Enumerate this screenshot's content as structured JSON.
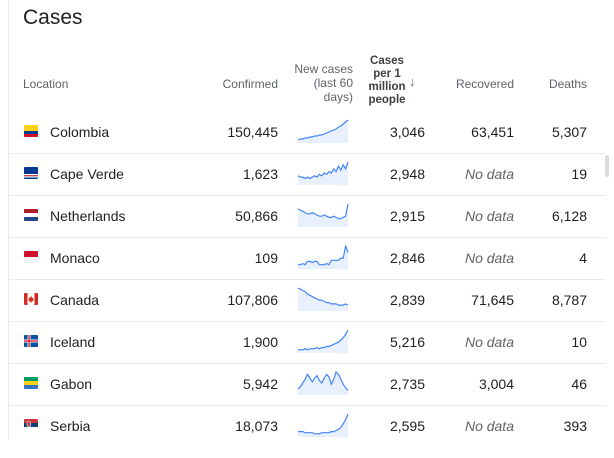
{
  "title": "Cases",
  "columns": {
    "location": "Location",
    "confirmed": "Confirmed",
    "new_cases": [
      "New cases",
      "(last 60",
      "days)"
    ],
    "cases_per_million": [
      "Cases",
      "per 1",
      "million",
      "people"
    ],
    "sort_arrow": "↓",
    "recovered": "Recovered",
    "deaths": "Deaths"
  },
  "accent_color": "#4285f4",
  "rows": [
    {
      "country": "Colombia",
      "flag": "colombia-flag-icon",
      "confirmed": "150,445",
      "cases_per_million": "3,046",
      "recovered": "63,451",
      "recovered_missing": false,
      "deaths": "5,307",
      "trend": [
        2,
        3,
        3,
        4,
        4,
        5,
        5,
        6,
        6,
        7,
        7,
        8,
        9,
        10,
        11,
        12,
        13,
        15,
        16,
        18,
        20,
        22
      ]
    },
    {
      "country": "Cape Verde",
      "flag": "cape-verde-flag-icon",
      "confirmed": "1,623",
      "cases_per_million": "2,948",
      "recovered": "No data",
      "recovered_missing": true,
      "deaths": "19",
      "trend": [
        6,
        5,
        5,
        4,
        5,
        4,
        5,
        6,
        5,
        7,
        6,
        8,
        7,
        9,
        8,
        11,
        9,
        13,
        10,
        14,
        11,
        16
      ]
    },
    {
      "country": "Netherlands",
      "flag": "netherlands-flag-icon",
      "confirmed": "50,866",
      "cases_per_million": "2,915",
      "recovered": "No data",
      "recovered_missing": true,
      "deaths": "6,128",
      "trend": [
        14,
        13,
        12,
        11,
        10,
        10,
        11,
        10,
        9,
        8,
        8,
        9,
        8,
        7,
        7,
        8,
        7,
        6,
        6,
        7,
        8,
        18
      ]
    },
    {
      "country": "Monaco",
      "flag": "monaco-flag-icon",
      "confirmed": "109",
      "cases_per_million": "2,846",
      "recovered": "No data",
      "recovered_missing": true,
      "deaths": "4",
      "trend": [
        3,
        3,
        4,
        3,
        6,
        6,
        5,
        6,
        6,
        3,
        3,
        3,
        4,
        3,
        7,
        7,
        7,
        7,
        9,
        9,
        20,
        14
      ]
    },
    {
      "country": "Canada",
      "flag": "canada-flag-icon",
      "confirmed": "107,806",
      "cases_per_million": "2,839",
      "recovered": "71,645",
      "recovered_missing": false,
      "deaths": "8,787",
      "trend": [
        18,
        17,
        16,
        15,
        13,
        12,
        11,
        10,
        9,
        8,
        8,
        7,
        6,
        6,
        5,
        5,
        5,
        4,
        4,
        4,
        5,
        4
      ]
    },
    {
      "country": "Iceland",
      "flag": "iceland-flag-icon",
      "confirmed": "1,900",
      "cases_per_million": "5,216",
      "recovered": "No data",
      "recovered_missing": true,
      "deaths": "10",
      "trend": [
        2,
        2,
        2,
        3,
        2,
        3,
        3,
        3,
        4,
        3,
        4,
        4,
        5,
        5,
        6,
        7,
        8,
        9,
        11,
        13,
        16,
        20
      ]
    },
    {
      "country": "Gabon",
      "flag": "gabon-flag-icon",
      "confirmed": "5,942",
      "cases_per_million": "2,735",
      "recovered": "3,004",
      "recovered_missing": false,
      "deaths": "46",
      "trend": [
        4,
        6,
        9,
        12,
        16,
        13,
        10,
        13,
        15,
        11,
        9,
        13,
        16,
        14,
        8,
        12,
        18,
        16,
        12,
        8,
        5,
        3
      ]
    },
    {
      "country": "Serbia",
      "flag": "serbia-flag-icon",
      "confirmed": "18,073",
      "cases_per_million": "2,595",
      "recovered": "No data",
      "recovered_missing": true,
      "deaths": "393",
      "trend": [
        4,
        4,
        4,
        3,
        3,
        3,
        3,
        2,
        2,
        2,
        3,
        3,
        3,
        3,
        4,
        4,
        5,
        6,
        8,
        11,
        15,
        20
      ]
    }
  ]
}
